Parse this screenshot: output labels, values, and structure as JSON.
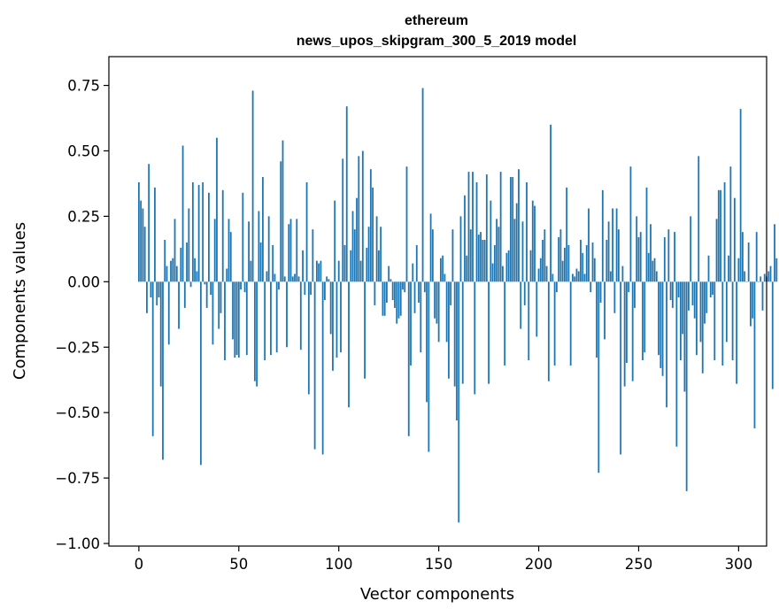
{
  "chart_data": {
    "type": "bar",
    "title": "ethereum",
    "subtitle": "news_upos_skipgram_300_5_2019 model",
    "xlabel": "Vector components",
    "ylabel": "Components values",
    "xlim": [
      -15,
      314
    ],
    "ylim": [
      -1.01,
      0.86
    ],
    "x_ticks": [
      0,
      50,
      100,
      150,
      200,
      250,
      300
    ],
    "x_tick_labels": [
      "0",
      "50",
      "100",
      "150",
      "200",
      "250",
      "300"
    ],
    "y_ticks": [
      -1.0,
      -0.75,
      -0.5,
      -0.25,
      0.0,
      0.25,
      0.5,
      0.75
    ],
    "y_tick_labels": [
      "−1.00",
      "−0.75",
      "−0.50",
      "−0.25",
      "0.00",
      "0.25",
      "0.50",
      "0.75"
    ],
    "bar_color": "#1f77b4",
    "values": [
      0.38,
      0.31,
      0.28,
      0.21,
      -0.12,
      0.45,
      -0.06,
      -0.59,
      0.36,
      -0.09,
      -0.06,
      -0.4,
      -0.68,
      0.16,
      0.06,
      -0.24,
      0.08,
      0.09,
      0.24,
      0.06,
      -0.18,
      0.13,
      0.52,
      -0.1,
      0.15,
      0.28,
      -0.02,
      0.38,
      0.09,
      0.04,
      0.37,
      -0.7,
      0.38,
      -0.01,
      -0.1,
      0.34,
      -0.05,
      -0.24,
      0.24,
      0.55,
      -0.18,
      -0.12,
      0.35,
      -0.3,
      0.05,
      0.24,
      0.19,
      -0.22,
      -0.29,
      -0.28,
      -0.29,
      -0.03,
      0.34,
      -0.04,
      -0.28,
      0.23,
      0.08,
      0.73,
      -0.38,
      -0.4,
      0.27,
      0.15,
      0.4,
      -0.3,
      0.04,
      0.25,
      -0.28,
      0.14,
      0.03,
      -0.27,
      -0.03,
      0.46,
      0.54,
      0.02,
      -0.25,
      0.22,
      0.24,
      0.02,
      0.03,
      0.24,
      0.02,
      -0.26,
      0.12,
      -0.05,
      0.38,
      -0.43,
      -0.05,
      0.2,
      -0.64,
      0.08,
      0.07,
      0.08,
      -0.66,
      -0.07,
      0.02,
      0.01,
      -0.2,
      -0.34,
      0.31,
      -0.29,
      0.08,
      -0.27,
      0.47,
      0.14,
      0.67,
      -0.48,
      0.12,
      0.27,
      0.2,
      0.32,
      0.48,
      0.08,
      0.5,
      -0.37,
      0.13,
      0.21,
      0.43,
      0.36,
      -0.09,
      0.25,
      0.12,
      0.21,
      -0.13,
      -0.13,
      -0.08,
      0.06,
      0.01,
      -0.07,
      -0.1,
      -0.16,
      -0.14,
      -0.13,
      -0.03,
      -0.04,
      0.44,
      -0.59,
      -0.32,
      0.07,
      -0.12,
      0.14,
      -0.08,
      -0.27,
      0.74,
      -0.04,
      -0.46,
      -0.65,
      0.26,
      0.2,
      -0.14,
      -0.16,
      -0.23,
      0.09,
      0.1,
      0.03,
      -0.23,
      -0.37,
      -0.09,
      0.2,
      -0.4,
      -0.53,
      -0.92,
      0.25,
      -0.39,
      0.33,
      0.1,
      0.42,
      0.2,
      0.42,
      -0.43,
      0.38,
      0.18,
      0.19,
      0.16,
      0.16,
      0.41,
      -0.39,
      0.31,
      0.07,
      0.14,
      0.24,
      0.21,
      0.42,
      0.06,
      -0.32,
      0.11,
      0.12,
      0.4,
      0.4,
      0.24,
      0.3,
      0.43,
      -0.18,
      0.23,
      -0.09,
      0.38,
      -0.3,
      0.12,
      0.31,
      0.29,
      -0.21,
      0.05,
      0.09,
      0.16,
      0.2,
      0.06,
      -0.38,
      0.6,
      0.03,
      -0.32,
      -0.04,
      0.17,
      0.2,
      0.08,
      0.13,
      0.36,
      0.14,
      -0.32,
      0.03,
      0.02,
      0.05,
      0.04,
      0.16,
      0.11,
      0.03,
      0.14,
      0.28,
      -0.04,
      0.15,
      0.09,
      -0.29,
      -0.73,
      -0.08,
      0.35,
      -0.22,
      0.16,
      0.23,
      0.04,
      0.28,
      -0.12,
      0.28,
      0.2,
      -0.66,
      0.06,
      -0.4,
      -0.31,
      -0.04,
      0.44,
      -0.38,
      -0.1,
      0.25,
      0.17,
      0.19,
      -0.3,
      -0.27,
      0.36,
      0.11,
      0.22,
      0.08,
      0.09,
      0.04,
      -0.28,
      -0.33,
      -0.36,
      0.17,
      -0.48,
      0.2,
      -0.07,
      -0.1,
      0.19,
      -0.63,
      -0.06,
      -0.3,
      -0.2,
      -0.42,
      -0.8,
      -0.11,
      0.25,
      -0.09,
      -0.14,
      -0.28,
      0.48,
      -0.23,
      -0.35,
      -0.16,
      -0.12,
      0.1,
      -0.06,
      -0.05,
      -0.3,
      0.24,
      0.35,
      0.35,
      -0.32,
      0.38,
      -0.23,
      0.1,
      0.44,
      -0.3,
      0.32,
      -0.39,
      0.09,
      0.66,
      0.19,
      0.04,
      0.0,
      0.15,
      -0.17,
      -0.14,
      -0.56,
      0.19,
      0.0,
      0.02,
      -0.11,
      0.03,
      0.02,
      0.04,
      0.06,
      -0.41,
      0.22,
      0.09
    ]
  }
}
